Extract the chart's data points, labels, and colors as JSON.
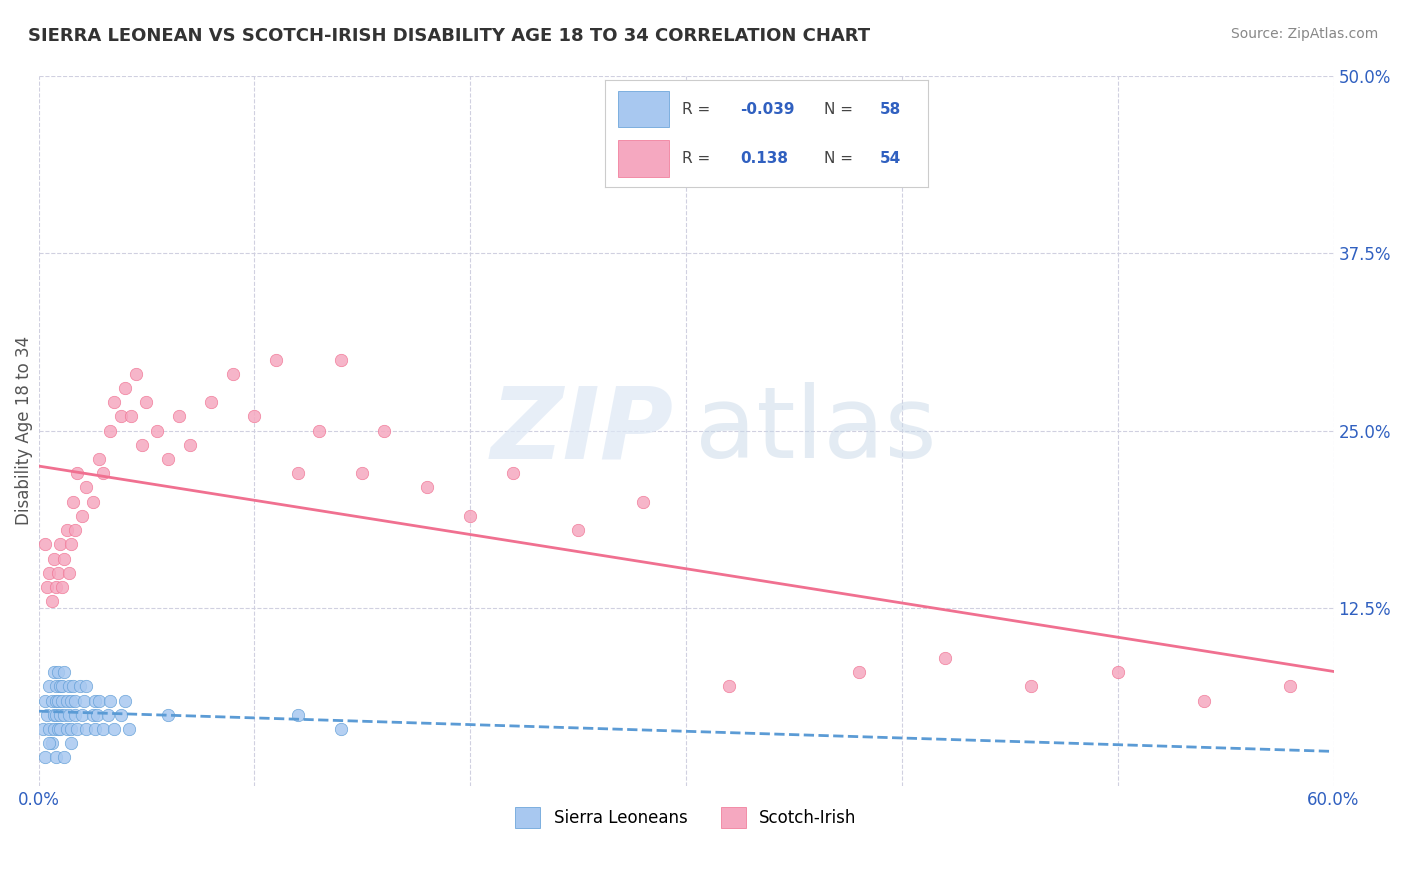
{
  "title": "SIERRA LEONEAN VS SCOTCH-IRISH DISABILITY AGE 18 TO 34 CORRELATION CHART",
  "source": "Source: ZipAtlas.com",
  "xlabel": "",
  "ylabel": "Disability Age 18 to 34",
  "xlim": [
    0.0,
    0.6
  ],
  "ylim": [
    0.0,
    0.5
  ],
  "xticks": [
    0.0,
    0.1,
    0.2,
    0.3,
    0.4,
    0.5,
    0.6
  ],
  "yticks": [
    0.0,
    0.125,
    0.25,
    0.375,
    0.5
  ],
  "ytick_labels": [
    "",
    "12.5%",
    "25.0%",
    "37.5%",
    "50.0%"
  ],
  "xtick_labels": [
    "0.0%",
    "",
    "",
    "",
    "",
    "",
    "60.0%"
  ],
  "sierra_r": -0.039,
  "sierra_n": 58,
  "scotch_r": 0.138,
  "scotch_n": 54,
  "sierra_color": "#a8c8f0",
  "scotch_color": "#f5a8c0",
  "sierra_line_color": "#5b9bd5",
  "scotch_line_color": "#f07090",
  "legend_r_color": "#3060c0",
  "background_color": "#ffffff",
  "grid_color": "#d0d0e0",
  "sierra_x": [
    0.002,
    0.003,
    0.004,
    0.005,
    0.005,
    0.006,
    0.006,
    0.007,
    0.007,
    0.007,
    0.008,
    0.008,
    0.008,
    0.009,
    0.009,
    0.009,
    0.01,
    0.01,
    0.01,
    0.011,
    0.011,
    0.012,
    0.012,
    0.013,
    0.013,
    0.014,
    0.014,
    0.015,
    0.015,
    0.016,
    0.017,
    0.017,
    0.018,
    0.019,
    0.02,
    0.021,
    0.022,
    0.022,
    0.025,
    0.026,
    0.026,
    0.027,
    0.028,
    0.03,
    0.032,
    0.033,
    0.035,
    0.038,
    0.04,
    0.042,
    0.003,
    0.005,
    0.008,
    0.012,
    0.015,
    0.06,
    0.12,
    0.14
  ],
  "sierra_y": [
    0.04,
    0.06,
    0.05,
    0.04,
    0.07,
    0.03,
    0.06,
    0.05,
    0.04,
    0.08,
    0.07,
    0.06,
    0.05,
    0.04,
    0.06,
    0.08,
    0.07,
    0.05,
    0.04,
    0.06,
    0.07,
    0.05,
    0.08,
    0.06,
    0.04,
    0.07,
    0.05,
    0.06,
    0.04,
    0.07,
    0.05,
    0.06,
    0.04,
    0.07,
    0.05,
    0.06,
    0.04,
    0.07,
    0.05,
    0.06,
    0.04,
    0.05,
    0.06,
    0.04,
    0.05,
    0.06,
    0.04,
    0.05,
    0.06,
    0.04,
    0.02,
    0.03,
    0.02,
    0.02,
    0.03,
    0.05,
    0.05,
    0.04
  ],
  "scotch_x": [
    0.003,
    0.004,
    0.005,
    0.006,
    0.007,
    0.008,
    0.009,
    0.01,
    0.011,
    0.012,
    0.013,
    0.014,
    0.015,
    0.016,
    0.017,
    0.018,
    0.02,
    0.022,
    0.025,
    0.028,
    0.03,
    0.033,
    0.035,
    0.038,
    0.04,
    0.043,
    0.045,
    0.048,
    0.05,
    0.055,
    0.06,
    0.065,
    0.07,
    0.08,
    0.09,
    0.1,
    0.11,
    0.12,
    0.13,
    0.14,
    0.15,
    0.16,
    0.18,
    0.2,
    0.22,
    0.25,
    0.28,
    0.32,
    0.38,
    0.42,
    0.46,
    0.5,
    0.54,
    0.58
  ],
  "scotch_y": [
    0.17,
    0.14,
    0.15,
    0.13,
    0.16,
    0.14,
    0.15,
    0.17,
    0.14,
    0.16,
    0.18,
    0.15,
    0.17,
    0.2,
    0.18,
    0.22,
    0.19,
    0.21,
    0.2,
    0.23,
    0.22,
    0.25,
    0.27,
    0.26,
    0.28,
    0.26,
    0.29,
    0.24,
    0.27,
    0.25,
    0.23,
    0.26,
    0.24,
    0.27,
    0.29,
    0.26,
    0.3,
    0.22,
    0.25,
    0.3,
    0.22,
    0.25,
    0.21,
    0.19,
    0.22,
    0.18,
    0.2,
    0.07,
    0.08,
    0.09,
    0.07,
    0.08,
    0.06,
    0.07
  ]
}
